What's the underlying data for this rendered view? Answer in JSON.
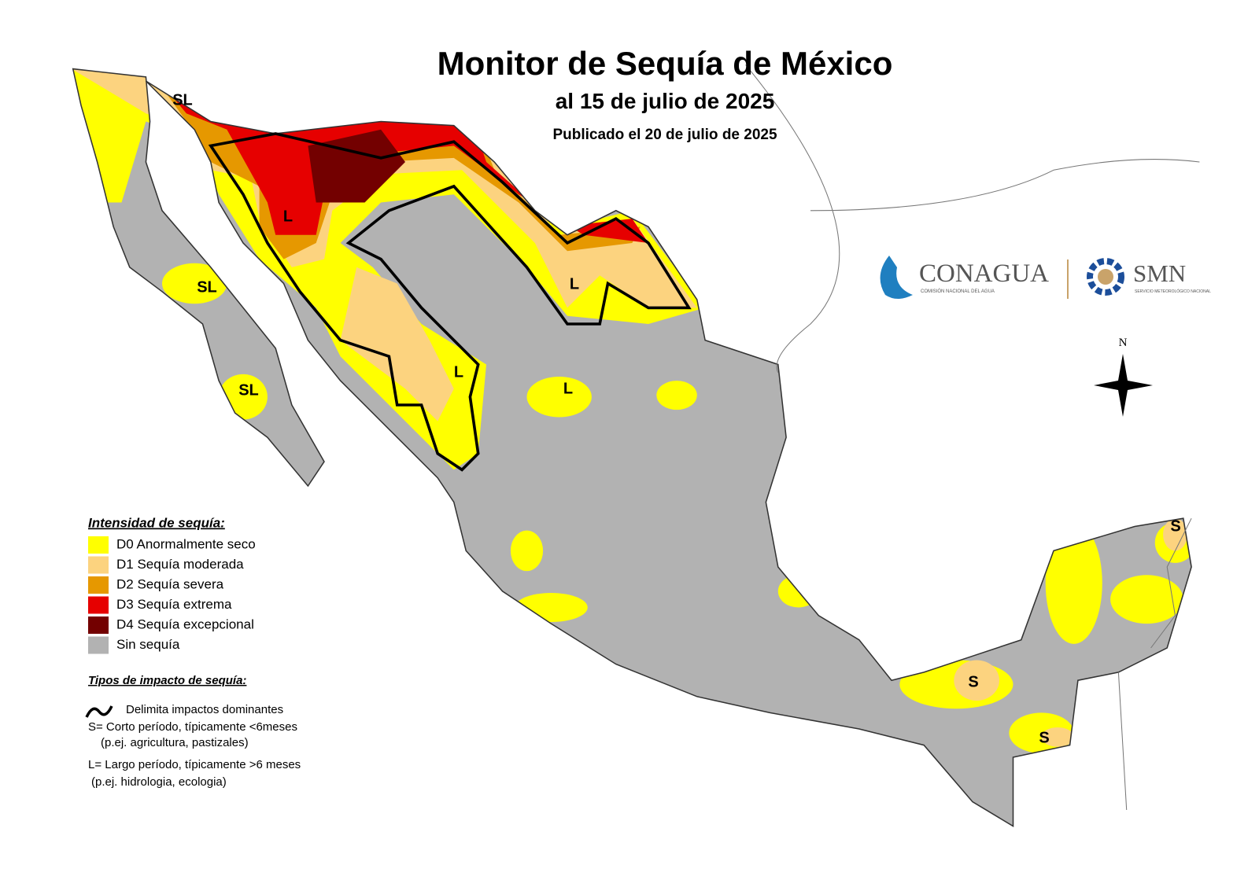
{
  "header": {
    "title": "Monitor de Sequía de México",
    "subtitle": "al 15 de julio de 2025",
    "published": "Publicado el 20 de julio de 2025"
  },
  "legend": {
    "title": "Intensidad de sequía:",
    "items": [
      {
        "label": "D0 Anormalmente seco",
        "color": "#ffff00"
      },
      {
        "label": "D1 Sequía moderada",
        "color": "#fcd37f"
      },
      {
        "label": "D2 Sequía severa",
        "color": "#e69800"
      },
      {
        "label": "D3 Sequía extrema",
        "color": "#e60000"
      },
      {
        "label": "D4 Sequía excepcional",
        "color": "#730000"
      },
      {
        "label": "Sin sequía",
        "color": "#b2b2b2"
      }
    ]
  },
  "impact": {
    "title": "Tipos de impacto de sequía:",
    "lines": [
      "Delimita impactos dominantes",
      "S= Corto período, típicamente <6meses",
      "(p.ej. agricultura, pastizales)",
      "L= Largo período, típicamente >6 meses",
      "(p.ej. hidrologia, ecologia)"
    ]
  },
  "map_labels": [
    "SL",
    "L",
    "SL",
    "SL",
    "L",
    "L",
    "L",
    "S",
    "S",
    "S"
  ],
  "logos": {
    "conagua": "CONAGUA",
    "conagua_sub": "COMISIÓN NACIONAL DEL AGUA",
    "smn": "SMN",
    "smn_sub": "SERVICIO METEOROLÓGICO NACIONAL"
  },
  "compass": "N"
}
